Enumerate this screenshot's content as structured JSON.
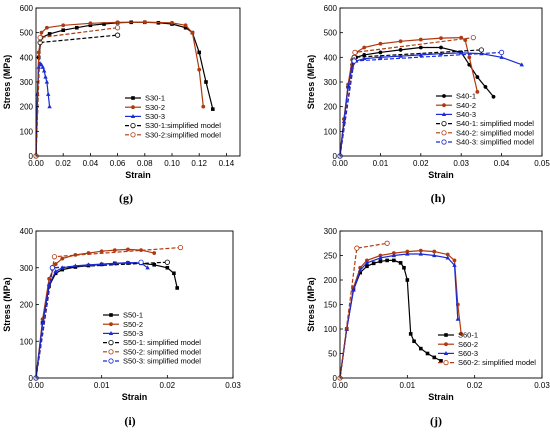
{
  "chart_data": [
    {
      "panel": "(g)",
      "type": "line",
      "xlabel": "Strain",
      "ylabel": "Stress (MPa)",
      "xlim": [
        0,
        0.15
      ],
      "ylim": [
        0,
        600
      ],
      "xticks": [
        "0.00",
        "0.02",
        "0.04",
        "0.06",
        "0.08",
        "0.10",
        "0.12",
        "0.14"
      ],
      "xtick_values": [
        0,
        0.02,
        0.04,
        0.06,
        0.08,
        0.1,
        0.12,
        0.14
      ],
      "yticks": [
        "0",
        "100",
        "200",
        "300",
        "400",
        "500",
        "600"
      ],
      "ytick_values": [
        0,
        100,
        200,
        300,
        400,
        500,
        600
      ],
      "legend_position": "center-right",
      "series": [
        {
          "name": "S30-1",
          "color": "#000000",
          "style": "solid",
          "marker": "square",
          "x": [
            0,
            0.002,
            0.004,
            0.01,
            0.02,
            0.03,
            0.04,
            0.05,
            0.06,
            0.07,
            0.08,
            0.09,
            0.1,
            0.11,
            0.115,
            0.12,
            0.125,
            0.13
          ],
          "y": [
            0,
            400,
            480,
            495,
            510,
            520,
            530,
            535,
            540,
            542,
            542,
            540,
            535,
            520,
            500,
            420,
            300,
            190
          ]
        },
        {
          "name": "S30-2",
          "color": "#b03a10",
          "style": "solid",
          "marker": "circle",
          "x": [
            0,
            0.002,
            0.004,
            0.008,
            0.02,
            0.04,
            0.06,
            0.08,
            0.1,
            0.11,
            0.115,
            0.12,
            0.123
          ],
          "y": [
            0,
            420,
            500,
            520,
            530,
            538,
            542,
            543,
            540,
            530,
            500,
            350,
            200
          ]
        },
        {
          "name": "S30-3",
          "color": "#1a2bd6",
          "style": "solid",
          "marker": "triangle",
          "x": [
            0,
            0.001,
            0.002,
            0.003,
            0.004,
            0.005,
            0.006,
            0.007,
            0.008,
            0.009,
            0.01
          ],
          "y": [
            0,
            250,
            360,
            375,
            370,
            360,
            345,
            320,
            300,
            250,
            200
          ]
        },
        {
          "name": "S30-1:simplified model",
          "color": "#000000",
          "style": "dashed",
          "marker": "open-circle",
          "x": [
            0,
            0.003,
            0.06
          ],
          "y": [
            0,
            460,
            490
          ]
        },
        {
          "name": "S30-2:simplified model",
          "color": "#b03a10",
          "style": "dashed",
          "marker": "open-circle",
          "x": [
            0,
            0.003,
            0.06
          ],
          "y": [
            0,
            480,
            520
          ]
        }
      ]
    },
    {
      "panel": "(h)",
      "type": "line",
      "xlabel": "Strain",
      "ylabel": "Stress (MPa)",
      "xlim": [
        0,
        0.05
      ],
      "ylim": [
        0,
        600
      ],
      "xticks": [
        "0.00",
        "0.01",
        "0.02",
        "0.03",
        "0.04",
        "0.05"
      ],
      "xtick_values": [
        0,
        0.01,
        0.02,
        0.03,
        0.04,
        0.05
      ],
      "yticks": [
        "0",
        "100",
        "200",
        "300",
        "400",
        "500",
        "600"
      ],
      "ytick_values": [
        0,
        100,
        200,
        300,
        400,
        500,
        600
      ],
      "legend_position": "bottom-right",
      "series": [
        {
          "name": "S40-1",
          "color": "#000000",
          "style": "solid",
          "marker": "circle",
          "x": [
            0,
            0.001,
            0.002,
            0.003,
            0.004,
            0.006,
            0.01,
            0.015,
            0.02,
            0.025,
            0.03,
            0.032,
            0.034,
            0.036,
            0.038
          ],
          "y": [
            0,
            150,
            280,
            370,
            400,
            410,
            420,
            430,
            440,
            440,
            420,
            370,
            320,
            280,
            240
          ]
        },
        {
          "name": "S40-2",
          "color": "#b03a10",
          "style": "solid",
          "marker": "circle",
          "x": [
            0,
            0.001,
            0.002,
            0.003,
            0.004,
            0.006,
            0.01,
            0.015,
            0.02,
            0.025,
            0.03,
            0.031,
            0.032,
            0.034
          ],
          "y": [
            0,
            150,
            290,
            390,
            420,
            440,
            455,
            465,
            472,
            478,
            480,
            470,
            400,
            260
          ]
        },
        {
          "name": "S40-3",
          "color": "#1a2bd6",
          "style": "solid",
          "marker": "triangle",
          "x": [
            0,
            0.001,
            0.002,
            0.003,
            0.004,
            0.006,
            0.01,
            0.015,
            0.02,
            0.025,
            0.03,
            0.035,
            0.04,
            0.045
          ],
          "y": [
            0,
            140,
            280,
            360,
            385,
            395,
            400,
            405,
            410,
            415,
            418,
            415,
            400,
            370
          ]
        },
        {
          "name": "S40-1: simplified model",
          "color": "#000000",
          "style": "dashed",
          "marker": "open-circle",
          "x": [
            0,
            0.0035,
            0.035
          ],
          "y": [
            0,
            400,
            430
          ]
        },
        {
          "name": "S40-2: simplified model",
          "color": "#b03a10",
          "style": "dashed",
          "marker": "open-circle",
          "x": [
            0,
            0.0037,
            0.033
          ],
          "y": [
            0,
            420,
            480
          ]
        },
        {
          "name": "S40-3: simplified model",
          "color": "#1a2bd6",
          "style": "dashed",
          "marker": "open-circle",
          "x": [
            0,
            0.0035,
            0.04
          ],
          "y": [
            0,
            385,
            420
          ]
        }
      ]
    },
    {
      "panel": "(i)",
      "type": "line",
      "xlabel": "Strain",
      "ylabel": "Stress (MPa)",
      "xlim": [
        0,
        0.03
      ],
      "ylim": [
        0,
        400
      ],
      "xticks": [
        "0.00",
        "0.01",
        "0.02",
        "0.03"
      ],
      "xtick_values": [
        0,
        0.01,
        0.02,
        0.03
      ],
      "yticks": [
        "0",
        "100",
        "200",
        "300",
        "400"
      ],
      "ytick_values": [
        0,
        100,
        200,
        300,
        400
      ],
      "legend_position": "bottom-right",
      "series": [
        {
          "name": "S50-1",
          "color": "#000000",
          "style": "solid",
          "marker": "square",
          "x": [
            0,
            0.001,
            0.002,
            0.003,
            0.004,
            0.006,
            0.008,
            0.01,
            0.012,
            0.014,
            0.016,
            0.018,
            0.02,
            0.021,
            0.0215
          ],
          "y": [
            0,
            150,
            250,
            285,
            295,
            302,
            306,
            309,
            312,
            313,
            312,
            308,
            300,
            285,
            245
          ]
        },
        {
          "name": "S50-2",
          "color": "#b03a10",
          "style": "solid",
          "marker": "circle",
          "x": [
            0,
            0.001,
            0.002,
            0.003,
            0.004,
            0.006,
            0.008,
            0.01,
            0.012,
            0.014,
            0.016,
            0.018
          ],
          "y": [
            0,
            160,
            270,
            310,
            325,
            335,
            340,
            345,
            348,
            350,
            348,
            340
          ]
        },
        {
          "name": "S50-3",
          "color": "#1a2bd6",
          "style": "solid",
          "marker": "triangle",
          "x": [
            0,
            0.001,
            0.002,
            0.003,
            0.004,
            0.006,
            0.008,
            0.01,
            0.012,
            0.014,
            0.016,
            0.017
          ],
          "y": [
            0,
            150,
            255,
            290,
            300,
            305,
            308,
            310,
            312,
            314,
            313,
            300
          ]
        },
        {
          "name": "S50-1: simplified model",
          "color": "#000000",
          "style": "dashed",
          "marker": "open-circle",
          "x": [
            0,
            0.0025,
            0.02
          ],
          "y": [
            0,
            300,
            315
          ]
        },
        {
          "name": "S50-2: simplified model",
          "color": "#b03a10",
          "style": "dashed",
          "marker": "open-circle",
          "x": [
            0,
            0.0028,
            0.022
          ],
          "y": [
            0,
            330,
            355
          ]
        },
        {
          "name": "S50-3: simplified model",
          "color": "#1a2bd6",
          "style": "dashed",
          "marker": "open-circle",
          "x": [
            0,
            0.0025,
            0.016
          ],
          "y": [
            0,
            300,
            315
          ]
        }
      ]
    },
    {
      "panel": "(j)",
      "type": "line",
      "xlabel": "Strain",
      "ylabel": "Stress (MPa)",
      "xlim": [
        0,
        0.03
      ],
      "ylim": [
        0,
        300
      ],
      "xticks": [
        "0.00",
        "0.01",
        "0.02",
        "0.03"
      ],
      "xtick_values": [
        0,
        0.01,
        0.02,
        0.03
      ],
      "yticks": [
        "0",
        "50",
        "100",
        "150",
        "200",
        "250",
        "300"
      ],
      "ytick_values": [
        0,
        50,
        100,
        150,
        200,
        250,
        300
      ],
      "legend_position": "bottom-right",
      "series": [
        {
          "name": "S60-1",
          "color": "#000000",
          "style": "solid",
          "marker": "square",
          "x": [
            0,
            0.001,
            0.002,
            0.003,
            0.004,
            0.005,
            0.006,
            0.007,
            0.008,
            0.009,
            0.0095,
            0.01,
            0.0105,
            0.011,
            0.012,
            0.013,
            0.014,
            0.015
          ],
          "y": [
            0,
            100,
            180,
            215,
            228,
            234,
            238,
            240,
            240,
            235,
            225,
            200,
            90,
            75,
            60,
            50,
            42,
            35
          ]
        },
        {
          "name": "S60-2",
          "color": "#b03a10",
          "style": "solid",
          "marker": "circle",
          "x": [
            0,
            0.001,
            0.002,
            0.003,
            0.004,
            0.006,
            0.008,
            0.01,
            0.012,
            0.014,
            0.016,
            0.017,
            0.0175,
            0.018
          ],
          "y": [
            0,
            100,
            185,
            225,
            240,
            250,
            255,
            258,
            260,
            258,
            252,
            240,
            150,
            90
          ]
        },
        {
          "name": "S60-3",
          "color": "#1a2bd6",
          "style": "solid",
          "marker": "triangle",
          "x": [
            0,
            0.001,
            0.002,
            0.003,
            0.004,
            0.006,
            0.008,
            0.01,
            0.012,
            0.014,
            0.016,
            0.017,
            0.0175
          ],
          "y": [
            0,
            100,
            180,
            220,
            235,
            245,
            250,
            253,
            253,
            250,
            245,
            230,
            120
          ]
        },
        {
          "name": "S60-2: simplified model",
          "color": "#b03a10",
          "style": "dashed",
          "marker": "open-circle",
          "x": [
            0,
            0.0025,
            0.007
          ],
          "y": [
            0,
            265,
            275
          ]
        }
      ]
    }
  ]
}
